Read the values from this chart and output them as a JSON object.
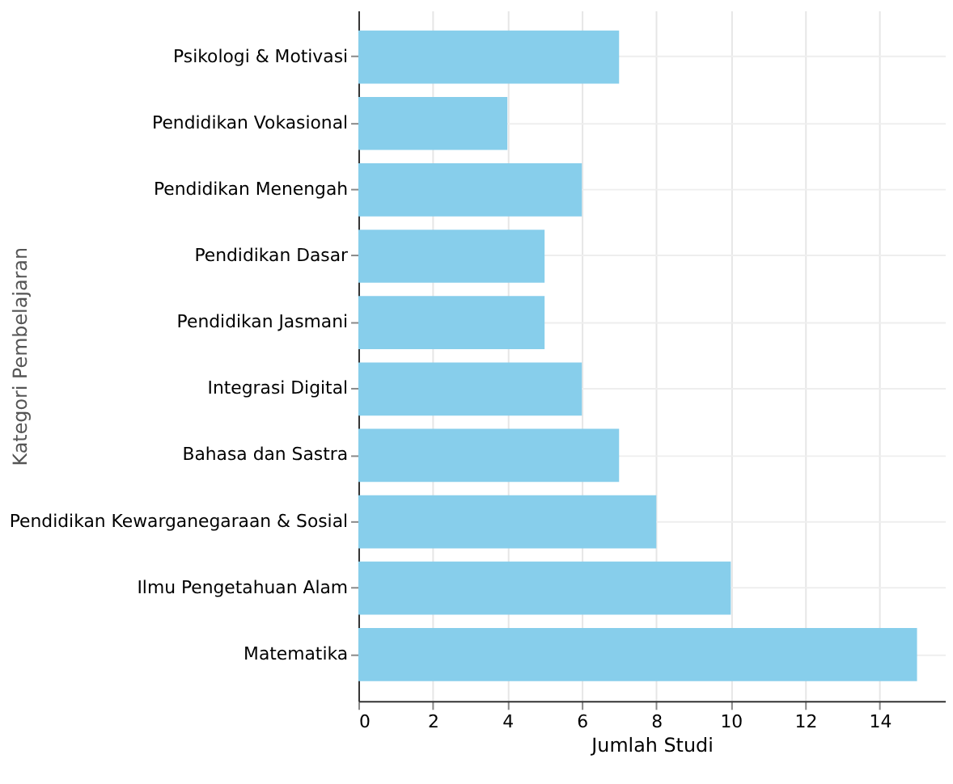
{
  "chart_data": {
    "type": "bar",
    "orientation": "horizontal",
    "xlabel": "Jumlah Studi",
    "ylabel": "Kategori Pembelajaran",
    "categories": [
      "Psikologi & Motivasi",
      "Pendidikan Vokasional",
      "Pendidikan Menengah",
      "Pendidikan Dasar",
      "Pendidikan Jasmani",
      "Integrasi Digital",
      "Bahasa dan Sastra",
      "Pendidikan Kewarganegaraan & Sosial",
      "Ilmu Pengetahuan Alam",
      "Matematika"
    ],
    "values": [
      7,
      4,
      6,
      5,
      5,
      6,
      7,
      8,
      10,
      15
    ],
    "color": "#87ceeb",
    "xlim": [
      0,
      15.75
    ],
    "xticks": [
      0,
      2,
      4,
      6,
      8,
      10,
      12,
      14
    ],
    "grid": true
  }
}
